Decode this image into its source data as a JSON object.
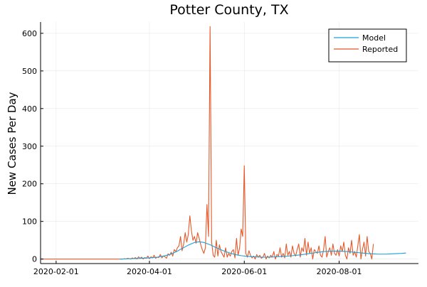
{
  "chart_data": {
    "type": "line",
    "title": "Potter County, TX",
    "xlabel": "",
    "ylabel": "New Cases Per Day",
    "x_type": "date",
    "xlim": [
      "2020-01-22",
      "2020-09-21"
    ],
    "ylim": [
      -12,
      630
    ],
    "x_ticks": [
      "2020-02-01",
      "2020-04-01",
      "2020-06-01",
      "2020-08-01"
    ],
    "y_ticks": [
      0,
      100,
      200,
      300,
      400,
      500,
      600
    ],
    "grid": true,
    "legend_position": "top-right",
    "colors": {
      "Model": "#1aa0d8",
      "Reported": "#e5582a"
    },
    "series": [
      {
        "name": "Model",
        "points": [
          [
            "2020-03-13",
            0
          ],
          [
            "2020-03-20",
            1
          ],
          [
            "2020-03-27",
            2
          ],
          [
            "2020-04-01",
            3
          ],
          [
            "2020-04-06",
            5
          ],
          [
            "2020-04-10",
            8
          ],
          [
            "2020-04-14",
            12
          ],
          [
            "2020-04-18",
            19
          ],
          [
            "2020-04-22",
            28
          ],
          [
            "2020-04-26",
            37
          ],
          [
            "2020-04-30",
            44
          ],
          [
            "2020-05-03",
            46
          ],
          [
            "2020-05-06",
            44
          ],
          [
            "2020-05-10",
            38
          ],
          [
            "2020-05-14",
            30
          ],
          [
            "2020-05-18",
            23
          ],
          [
            "2020-05-22",
            17
          ],
          [
            "2020-05-26",
            12
          ],
          [
            "2020-05-30",
            9
          ],
          [
            "2020-06-03",
            7
          ],
          [
            "2020-06-07",
            6
          ],
          [
            "2020-06-12",
            5
          ],
          [
            "2020-06-17",
            5
          ],
          [
            "2020-06-22",
            6
          ],
          [
            "2020-06-27",
            7
          ],
          [
            "2020-07-02",
            9
          ],
          [
            "2020-07-07",
            11
          ],
          [
            "2020-07-12",
            14
          ],
          [
            "2020-07-17",
            17
          ],
          [
            "2020-07-22",
            20
          ],
          [
            "2020-07-27",
            21
          ],
          [
            "2020-08-01",
            21
          ],
          [
            "2020-08-06",
            20
          ],
          [
            "2020-08-11",
            18
          ],
          [
            "2020-08-16",
            16
          ],
          [
            "2020-08-21",
            14
          ],
          [
            "2020-08-26",
            13
          ],
          [
            "2020-08-31",
            13
          ],
          [
            "2020-09-05",
            14
          ],
          [
            "2020-09-10",
            15
          ],
          [
            "2020-09-13",
            16
          ]
        ]
      },
      {
        "name": "Reported",
        "start": "2020-01-22",
        "values": [
          0,
          0,
          0,
          0,
          0,
          0,
          0,
          0,
          0,
          0,
          0,
          0,
          0,
          0,
          0,
          0,
          0,
          0,
          0,
          0,
          0,
          0,
          0,
          0,
          0,
          0,
          0,
          0,
          0,
          0,
          0,
          0,
          0,
          0,
          0,
          0,
          0,
          0,
          0,
          0,
          0,
          0,
          0,
          0,
          0,
          0,
          0,
          0,
          0,
          0,
          0,
          0,
          0,
          0,
          1,
          0,
          2,
          1,
          0,
          3,
          1,
          4,
          0,
          6,
          2,
          5,
          0,
          4,
          2,
          8,
          1,
          6,
          3,
          10,
          2,
          5,
          4,
          12,
          3,
          8,
          6,
          2,
          14,
          10,
          18,
          8,
          25,
          20,
          30,
          35,
          60,
          22,
          40,
          70,
          45,
          65,
          115,
          75,
          50,
          60,
          42,
          70,
          55,
          38,
          25,
          15,
          30,
          145,
          60,
          618,
          45,
          10,
          5,
          50,
          8,
          38,
          20,
          12,
          5,
          30,
          5,
          15,
          8,
          20,
          25,
          3,
          55,
          10,
          30,
          80,
          60,
          248,
          15,
          5,
          22,
          10,
          3,
          8,
          0,
          12,
          5,
          10,
          2,
          5,
          15,
          0,
          8,
          3,
          10,
          5,
          20,
          0,
          12,
          8,
          30,
          5,
          15,
          3,
          40,
          10,
          20,
          5,
          35,
          15,
          8,
          25,
          40,
          5,
          30,
          20,
          55,
          10,
          45,
          15,
          30,
          0,
          25,
          20,
          15,
          35,
          10,
          5,
          25,
          60,
          5,
          20,
          30,
          10,
          40,
          15,
          10,
          25,
          8,
          35,
          20,
          45,
          10,
          0,
          30,
          15,
          50,
          10,
          20,
          5,
          35,
          65,
          0,
          25,
          45,
          8,
          60,
          20,
          15,
          0,
          40
        ]
      }
    ]
  }
}
